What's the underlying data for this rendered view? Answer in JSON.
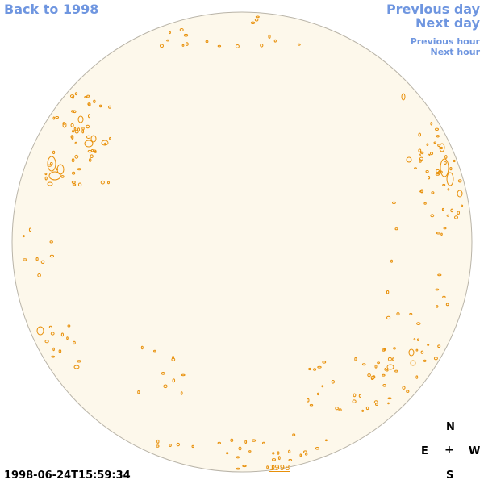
{
  "nav": {
    "back_label": "Back to 1998",
    "previous_day_label": "Previous day",
    "next_day_label": "Next day",
    "previous_hour_label": "Previous hour",
    "next_hour_label": "Next hour"
  },
  "image": {
    "timestamp": "1998-06-24T15:59:34",
    "year_mark": "1998",
    "disk_fill": "#fdf8eb",
    "contour_color": "#e8900a"
  },
  "compass": {
    "north": "N",
    "east": "E",
    "center": "+",
    "west": "W",
    "south": "S"
  }
}
